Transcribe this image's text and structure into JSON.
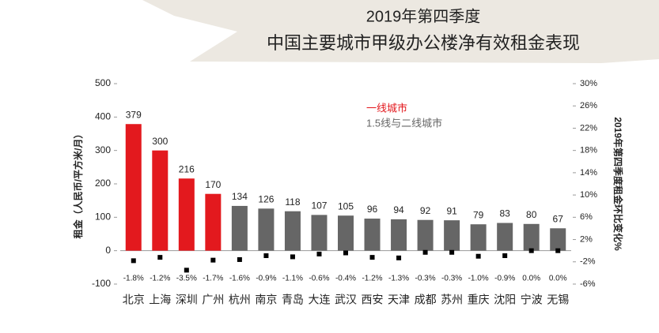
{
  "chart_data": {
    "type": "bar",
    "title": "2019年第四季度",
    "subtitle": "中国主要城市甲级办公楼净有效租金表现",
    "ylabel": "租金（人民币/平方米/月）",
    "y2label": "2019年第四季度租金环比变化%",
    "categories": [
      "北京",
      "上海",
      "深圳",
      "广州",
      "杭州",
      "南京",
      "青岛",
      "大连",
      "武汉",
      "西安",
      "天津",
      "成都",
      "苏州",
      "重庆",
      "沈阳",
      "宁波",
      "无锡"
    ],
    "series": [
      {
        "name": "一线城市",
        "color": "#e3191e",
        "values": [
          379,
          300,
          216,
          170,
          null,
          null,
          null,
          null,
          null,
          null,
          null,
          null,
          null,
          null,
          null,
          null,
          null
        ]
      },
      {
        "name": "1.5线与二线城市",
        "color": "#666666",
        "values": [
          null,
          null,
          null,
          null,
          134,
          126,
          118,
          107,
          105,
          96,
          94,
          92,
          91,
          79,
          83,
          80,
          67
        ]
      },
      {
        "type": "scatter",
        "axis": "y2",
        "color": "#000000",
        "values": [
          -1.8,
          -1.2,
          -3.5,
          -1.7,
          -1.6,
          -0.9,
          -1.1,
          -0.6,
          -0.4,
          -1.2,
          -1.3,
          -0.3,
          -0.3,
          -1.0,
          -0.9,
          0.0,
          0.0
        ],
        "value_labels": [
          "-1.8%",
          "-1.2%",
          "-3.5%",
          "-1.7%",
          "-1.6%",
          "-0.9%",
          "-1.1%",
          "-0.6%",
          "-0.4%",
          "-1.2%",
          "-1.3%",
          "-0.3%",
          "-0.3%",
          "-1.0%",
          "-0.9%",
          "0.0%",
          "0.0%"
        ]
      }
    ],
    "ylim": [
      -100,
      500
    ],
    "yticks": [
      -100,
      0,
      100,
      200,
      300,
      400,
      500
    ],
    "y2lim": [
      -6,
      30
    ],
    "y2ticks": [
      {
        "value": -6,
        "label": "-6%"
      },
      {
        "value": -2,
        "label": "-2%"
      },
      {
        "value": 2,
        "label": "2%"
      },
      {
        "value": 6,
        "label": "6%"
      },
      {
        "value": 10,
        "label": "10%"
      },
      {
        "value": 14,
        "label": "14%"
      },
      {
        "value": 18,
        "label": "18%"
      },
      {
        "value": 22,
        "label": "22%"
      },
      {
        "value": 26,
        "label": "26%"
      },
      {
        "value": 30,
        "label": "30%"
      }
    ],
    "legend": "top"
  }
}
